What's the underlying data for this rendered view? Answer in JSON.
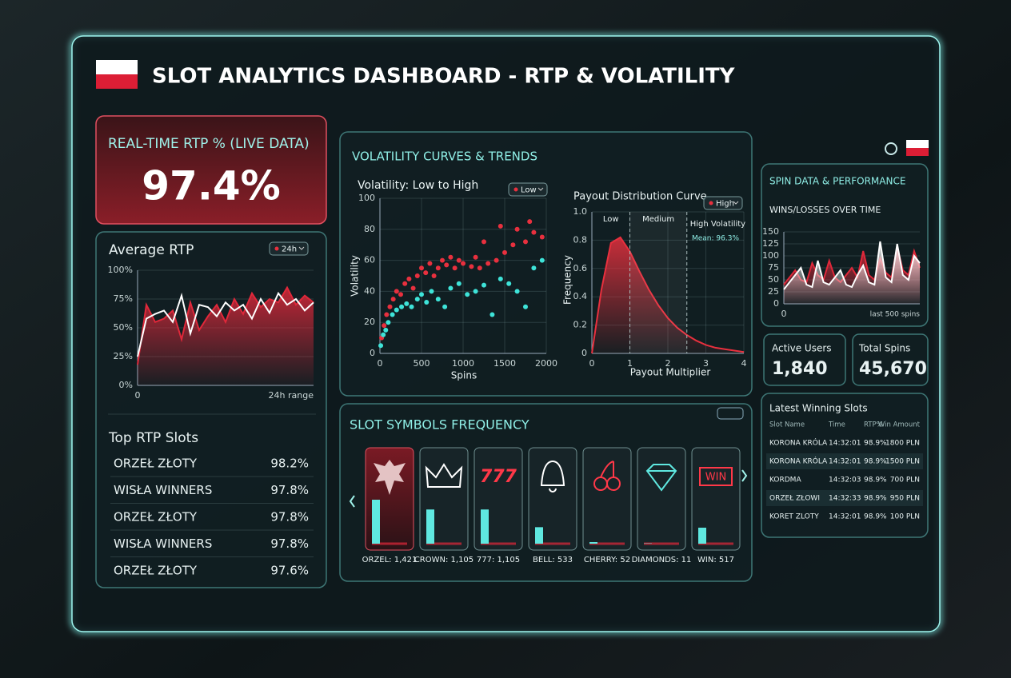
{
  "header": {
    "title": "SLOT ANALYTICS DASHBOARD - RTP & VOLATILITY"
  },
  "rtp_card": {
    "title": "REAL-TIME RTP % (LIVE DATA)",
    "value": "97.4%"
  },
  "volatility_panel": {
    "title": "VOLATILITY CURVES & TRENDS"
  },
  "spin_panel": {
    "title": "SPIN DATA & PERFORMANCE"
  },
  "stats": [
    {
      "label": "Active Users",
      "value": "1,840"
    },
    {
      "label": "Total Spins",
      "value": "45,670"
    }
  ],
  "top_slots": {
    "title": "Top RTP Slots",
    "rows": [
      [
        "ORZEŁ ZŁOTY",
        "98.2%"
      ],
      [
        "WISŁA WINNERS",
        "97.8%"
      ],
      [
        "ORZEŁ ZŁOTY",
        "97.8%"
      ],
      [
        "WISŁA WINNERS",
        "97.8%"
      ],
      [
        "ORZEŁ ZŁOTY",
        "97.6%"
      ]
    ]
  },
  "latest_wins": {
    "title": "Latest Winning Slots",
    "columns": [
      "Slot Name",
      "Time",
      "RTP%",
      "Win Amount"
    ],
    "rows": [
      [
        "KORONA KRÓLA",
        "14:32:01",
        "98.9%",
        "1800 PLN"
      ],
      [
        "KORONA KRÓLA",
        "14:32:01",
        "98.9%",
        "1500 PLN"
      ],
      [
        "KORDMA",
        "14:32:03",
        "98.9%",
        "700 PLN"
      ],
      [
        "ORZEŁ ZŁOWI",
        "14:32:33",
        "98.9%",
        "950 PLN"
      ],
      [
        "KORET ZLOTY",
        "14:32:01",
        "98.9%",
        "100 PLN"
      ]
    ]
  },
  "symbol_icon_texts": [
    "777",
    "WIN"
  ],
  "chart_data": [
    {
      "type": "line",
      "title": "Average RTP",
      "filter": "24h",
      "xlabel": "24h range",
      "xlim": [
        0,
        20
      ],
      "xticks": [
        0
      ],
      "ylim": [
        0,
        100
      ],
      "yticks": [
        {
          "value": 0,
          "label": "0%"
        },
        {
          "value": 25,
          "label": "25%"
        },
        {
          "value": 50,
          "label": "50%"
        },
        {
          "value": 75,
          "label": "75%"
        },
        {
          "value": 100,
          "label": "100%"
        }
      ],
      "grid": true,
      "series": [
        {
          "color": "#e0283a",
          "area": true,
          "values": [
            18,
            70,
            55,
            58,
            65,
            40,
            72,
            48,
            60,
            70,
            55,
            75,
            62,
            80,
            68,
            75,
            72,
            85,
            70,
            78,
            72
          ]
        },
        {
          "color": "#ffffff",
          "area": false,
          "values": [
            25,
            58,
            62,
            65,
            55,
            78,
            45,
            70,
            68,
            60,
            72,
            65,
            70,
            58,
            75,
            63,
            80,
            70,
            75,
            65,
            72
          ]
        }
      ]
    },
    {
      "type": "scatter",
      "title": "Volatility: Low to High",
      "filter": "Low",
      "xlabel": "Spins",
      "ylabel": "Volatility",
      "xlim": [
        0,
        2000
      ],
      "xticks": [
        0,
        500,
        1000,
        1500,
        2000
      ],
      "ylim": [
        0,
        100
      ],
      "yticks": [
        0,
        20,
        40,
        60,
        80,
        100
      ],
      "grid": true,
      "series": [
        {
          "color": "#e8303e",
          "x": [
            20,
            50,
            80,
            120,
            160,
            200,
            250,
            300,
            350,
            400,
            450,
            500,
            550,
            600,
            650,
            700,
            750,
            800,
            850,
            900,
            950,
            1000,
            1100,
            1150,
            1200,
            1250,
            1300,
            1400,
            1450,
            1500,
            1600,
            1650,
            1750,
            1800,
            1850,
            1950
          ],
          "values": [
            10,
            18,
            25,
            30,
            35,
            40,
            38,
            45,
            48,
            42,
            50,
            55,
            52,
            58,
            50,
            55,
            60,
            57,
            62,
            55,
            60,
            58,
            56,
            62,
            55,
            72,
            58,
            60,
            82,
            65,
            70,
            80,
            72,
            85,
            78,
            75
          ]
        },
        {
          "color": "#3ee3d8",
          "x": [
            10,
            40,
            70,
            100,
            150,
            200,
            260,
            320,
            380,
            450,
            500,
            560,
            620,
            700,
            780,
            850,
            950,
            1050,
            1150,
            1250,
            1350,
            1450,
            1550,
            1650,
            1750,
            1850,
            1950
          ],
          "values": [
            5,
            12,
            15,
            20,
            25,
            28,
            30,
            32,
            30,
            35,
            38,
            33,
            40,
            35,
            30,
            42,
            45,
            38,
            40,
            44,
            25,
            48,
            45,
            40,
            30,
            55,
            60
          ]
        }
      ]
    },
    {
      "type": "area",
      "title": "Payout Distribution Curve",
      "filter": "High",
      "xlabel": "Payout Multiplier",
      "ylabel": "Frequency",
      "xlim": [
        0,
        4
      ],
      "xticks": [
        0,
        1,
        2,
        3,
        4
      ],
      "ylim": [
        0,
        1
      ],
      "yticks": [
        0,
        0.2,
        0.4,
        0.6,
        0.8,
        {
          "value": 1,
          "label": "1.0"
        }
      ],
      "grid": true,
      "regions": [
        {
          "label": "Low",
          "from": 0,
          "to": 1
        },
        {
          "label": "Medium",
          "from": 1,
          "to": 2.5
        },
        {
          "label": "High Volatility",
          "from": 2.5,
          "to": 4
        }
      ],
      "annotation": "Mean: 96.3%",
      "series": [
        {
          "color": "#e8303e",
          "area": true,
          "x": [
            0,
            0.25,
            0.5,
            0.75,
            1,
            1.25,
            1.5,
            1.75,
            2,
            2.25,
            2.5,
            2.75,
            3,
            3.25,
            3.5,
            3.75,
            4
          ],
          "values": [
            0,
            0.45,
            0.78,
            0.82,
            0.72,
            0.58,
            0.45,
            0.34,
            0.25,
            0.18,
            0.13,
            0.09,
            0.06,
            0.04,
            0.03,
            0.02,
            0.01
          ]
        }
      ]
    },
    {
      "type": "bar",
      "title": "SLOT SYMBOLS FREQUENCY",
      "categories": [
        "ORZEL: 1,421",
        "CROWN: 1,105",
        "777: 1,105",
        "BELL: 533",
        "CHERRY: 52",
        "DIAMONDS: 11",
        "WIN: 517"
      ],
      "values": [
        1421,
        1105,
        1105,
        533,
        52,
        11,
        517
      ],
      "color": "#5fe8e0"
    },
    {
      "type": "line",
      "title": "WINS/LOSSES OVER TIME",
      "xlabel": "last 500 spins",
      "xlim": [
        0,
        24
      ],
      "xticks": [
        0
      ],
      "ylim": [
        0,
        150
      ],
      "yticks": [
        0,
        25,
        50,
        75,
        100,
        125,
        150
      ],
      "grid": true,
      "series": [
        {
          "color": "#e0283a",
          "area": true,
          "values": [
            40,
            55,
            70,
            50,
            45,
            85,
            60,
            50,
            90,
            55,
            45,
            60,
            75,
            55,
            110,
            60,
            50,
            95,
            65,
            55,
            120,
            70,
            60,
            110,
            75
          ]
        },
        {
          "color": "#ffffff",
          "area": true,
          "values": [
            30,
            45,
            60,
            75,
            40,
            35,
            90,
            45,
            40,
            55,
            70,
            40,
            35,
            60,
            80,
            45,
            40,
            130,
            55,
            45,
            125,
            60,
            50,
            100,
            85
          ]
        }
      ]
    }
  ]
}
